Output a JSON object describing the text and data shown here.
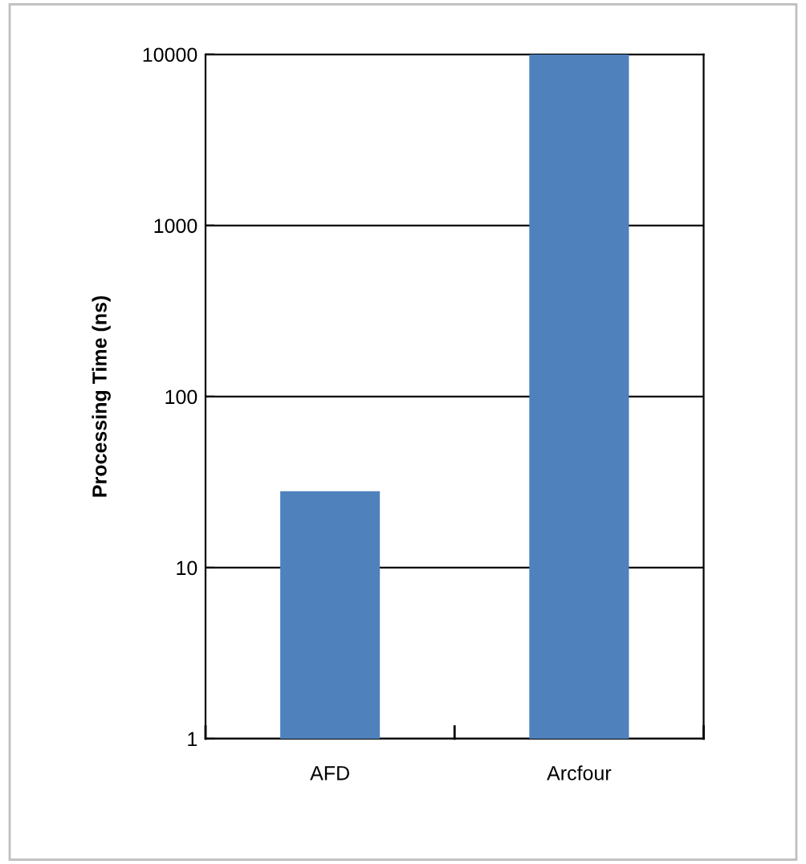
{
  "chart_data": {
    "type": "bar",
    "ylabel": "Processing Time (ns)",
    "categories": [
      "AFD",
      "Arcfour"
    ],
    "series": [
      {
        "color": "#4f81bd",
        "values": [
          28,
          10000
        ]
      }
    ],
    "log": true,
    "ylim": [
      1,
      10000
    ],
    "yticks": [
      1,
      10,
      100,
      1000,
      10000
    ],
    "grid": "y",
    "legend": false
  }
}
